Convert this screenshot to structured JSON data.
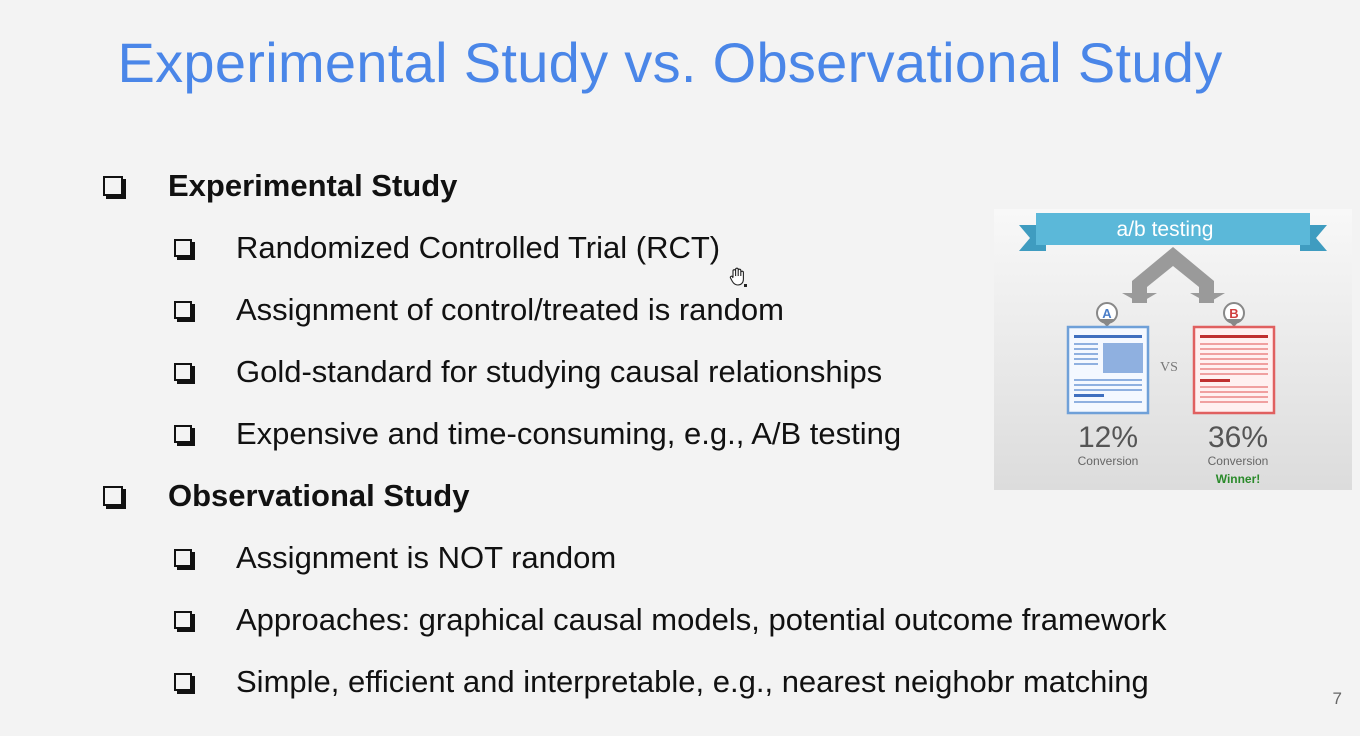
{
  "title": "Experimental Study vs. Observational Study",
  "sections": [
    {
      "heading": "Experimental Study",
      "items": [
        "Randomized Controlled Trial (RCT)",
        "Assignment of control/treated is random",
        "Gold-standard for studying causal relationships",
        "Expensive and time-consuming, e.g., A/B testing"
      ]
    },
    {
      "heading": "Observational Study",
      "items": [
        "Assignment is NOT random",
        "Approaches: graphical causal models, potential outcome framework",
        "Simple, efficient and interpretable, e.g., nearest neighobr matching"
      ]
    }
  ],
  "ab_image": {
    "banner": "a/b testing",
    "variant_a": {
      "marker": "A",
      "percent": "12%",
      "label": "Conversion"
    },
    "variant_b": {
      "marker": "B",
      "percent": "36%",
      "label": "Conversion",
      "badge": "Winner!"
    },
    "vs": "VS",
    "colors": {
      "banner": "#5bb8d9",
      "a": "#6fa0d8",
      "b": "#e06060",
      "winner": "#2a8a2a"
    }
  },
  "page_number": "7"
}
